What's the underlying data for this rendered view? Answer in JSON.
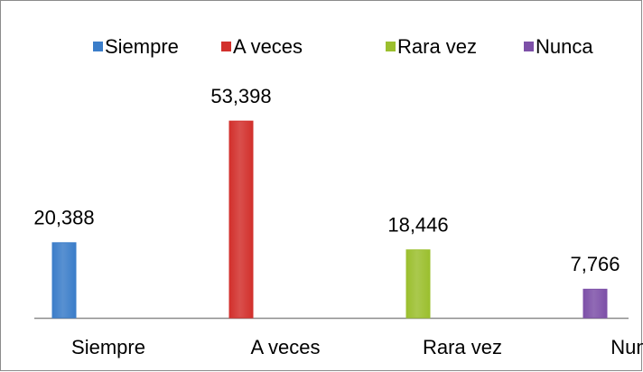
{
  "chart_data": {
    "type": "bar",
    "categories": [
      "Siempre",
      "A veces",
      "Rara vez",
      "Nunca"
    ],
    "values": [
      20.388,
      53.398,
      18.446,
      7.766
    ],
    "value_labels": [
      "20,388",
      "53,398",
      "18,446",
      "7,766"
    ],
    "colors": [
      "#3b7dc9",
      "#d2302c",
      "#9bbf2e",
      "#7d50a8"
    ],
    "legend": "top"
  }
}
